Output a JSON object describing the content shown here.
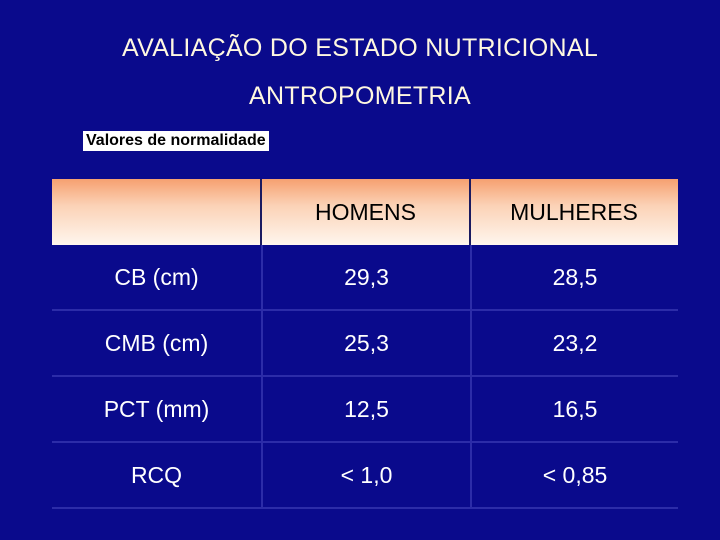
{
  "slide": {
    "title": "AVALIAÇÃO DO ESTADO NUTRICIONAL",
    "subtitle": "ANTROPOMETRIA",
    "label": "Valores de normalidade"
  },
  "table": {
    "headers": [
      "",
      "HOMENS",
      "MULHERES"
    ],
    "rows": [
      [
        "CB (cm)",
        "29,3",
        "28,5"
      ],
      [
        "CMB (cm)",
        "25,3",
        "23,2"
      ],
      [
        "PCT (mm)",
        "12,5",
        "16,5"
      ],
      [
        "RCQ",
        "< 1,0",
        "< 0,85"
      ]
    ]
  },
  "colors": {
    "background": "#0a0a8c",
    "header_gradient_top": "#f6a070",
    "header_gradient_bottom": "#fff6ee",
    "title_text": "#fff8e0"
  }
}
